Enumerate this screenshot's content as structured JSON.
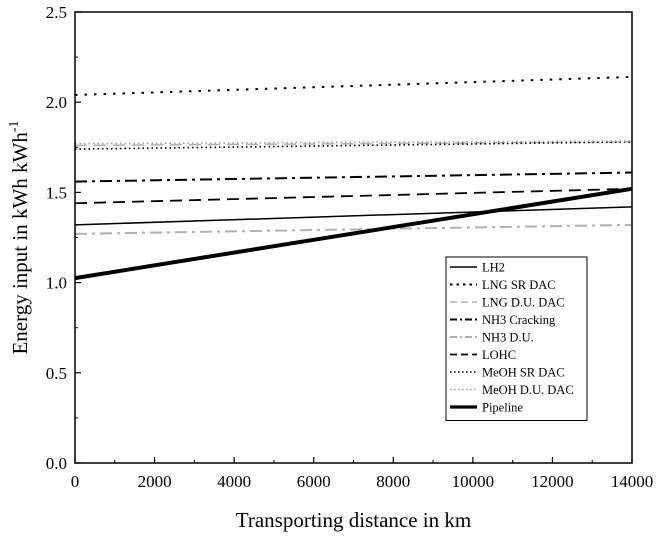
{
  "chart_data": {
    "type": "line",
    "title": "",
    "xlabel": "Transporting distance in km",
    "ylabel_main": "Energy input in kWh kWh",
    "ylabel_sup": "-1",
    "xlim": [
      0,
      14000
    ],
    "ylim": [
      0.0,
      2.5
    ],
    "xticks": [
      0,
      2000,
      4000,
      6000,
      8000,
      10000,
      12000,
      14000
    ],
    "xtick_labels": [
      "0",
      "2000",
      "4000",
      "6000",
      "8000",
      "10000",
      "12000",
      "14000"
    ],
    "yticks": [
      0.0,
      0.5,
      1.0,
      1.5,
      2.0,
      2.5
    ],
    "ytick_labels": [
      "0.0",
      "0.5",
      "1.0",
      "1.5",
      "2.0",
      "2.5"
    ],
    "grid": false,
    "legend_position": "lower-right",
    "x": [
      0,
      14000
    ],
    "series": [
      {
        "name": "LH2",
        "values": [
          1.32,
          1.42
        ],
        "color": "#000000",
        "style": "solid",
        "width": 1.5
      },
      {
        "name": "LNG SR DAC",
        "values": [
          2.04,
          2.14
        ],
        "color": "#000000",
        "style": "dot",
        "width": 2.0
      },
      {
        "name": "LNG D.U. DAC",
        "values": [
          1.76,
          1.78
        ],
        "color": "#b0b0b0",
        "style": "dash",
        "width": 1.5
      },
      {
        "name": "NH3 Cracking",
        "values": [
          1.56,
          1.61
        ],
        "color": "#000000",
        "style": "dashdot",
        "width": 2.0
      },
      {
        "name": "NH3 D.U.",
        "values": [
          1.27,
          1.32
        ],
        "color": "#b0b0b0",
        "style": "dashdot",
        "width": 2.0
      },
      {
        "name": "LOHC",
        "values": [
          1.44,
          1.52
        ],
        "color": "#000000",
        "style": "dash",
        "width": 1.8
      },
      {
        "name": "MeOH SR DAC",
        "values": [
          1.74,
          1.78
        ],
        "color": "#000000",
        "style": "dense-dot",
        "width": 1.6
      },
      {
        "name": "MeOH D.U. DAC",
        "values": [
          1.77,
          1.785
        ],
        "color": "#a0a0a0",
        "style": "dense-dot",
        "width": 1.6
      },
      {
        "name": "Pipeline",
        "values": [
          1.025,
          1.52
        ],
        "color": "#000000",
        "style": "solid",
        "width": 4.0
      }
    ]
  }
}
